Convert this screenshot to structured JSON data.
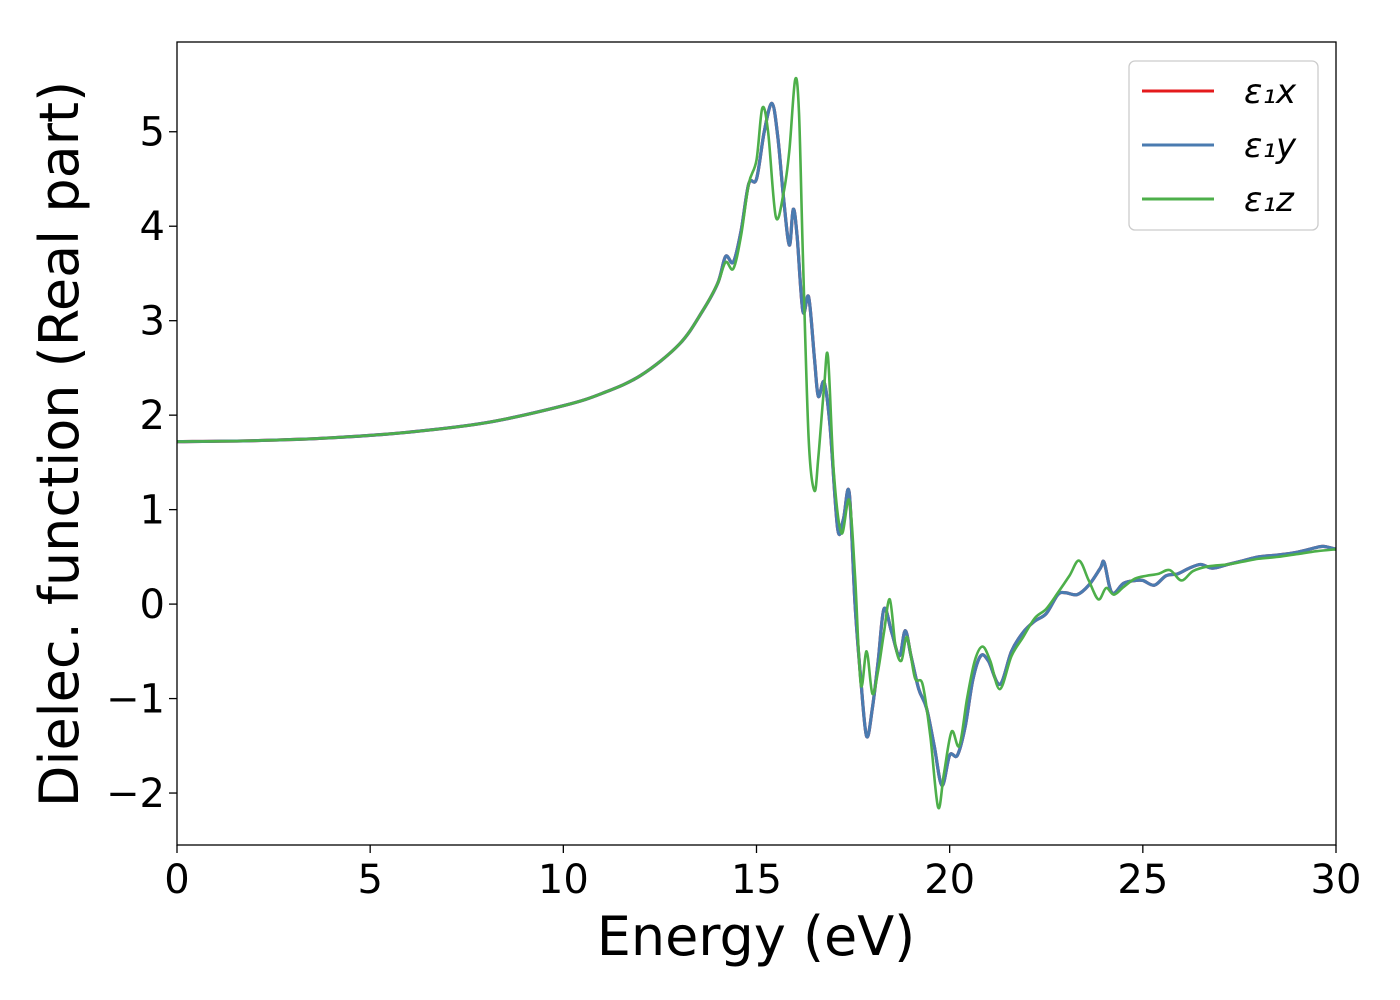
{
  "chart_data": {
    "type": "line",
    "xlabel": "Energy (eV)",
    "ylabel": "Dielec. function (Real part)",
    "xlim": [
      0,
      30
    ],
    "ylim": [
      -2.55,
      5.95
    ],
    "xticks": [
      0,
      5,
      10,
      15,
      20,
      25,
      30
    ],
    "xtick_labels": [
      "0",
      "5",
      "10",
      "15",
      "20",
      "25",
      "30"
    ],
    "yticks": [
      -2,
      -1,
      0,
      1,
      2,
      3,
      4,
      5
    ],
    "ytick_labels": [
      "−2",
      "−1",
      "0",
      "1",
      "2",
      "3",
      "4",
      "5"
    ],
    "grid": false,
    "legend_position": "top-right",
    "series": [
      {
        "name": "ε₁x",
        "legend_label": "ε₁x",
        "color": "#e41a1c",
        "x": [
          0,
          2,
          4,
          6,
          8,
          10,
          11,
          12,
          13,
          13.6,
          14.0,
          14.2,
          14.4,
          14.6,
          14.8,
          15.0,
          15.2,
          15.4,
          15.55,
          15.7,
          15.85,
          15.95,
          16.05,
          16.2,
          16.35,
          16.5,
          16.6,
          16.75,
          16.9,
          17.1,
          17.25,
          17.4,
          17.55,
          17.7,
          17.85,
          18.0,
          18.15,
          18.3,
          18.5,
          18.7,
          18.85,
          19.0,
          19.2,
          19.4,
          19.6,
          19.8,
          20.0,
          20.2,
          20.4,
          20.6,
          20.8,
          21.0,
          21.3,
          21.6,
          21.9,
          22.2,
          22.5,
          22.8,
          23.0,
          23.3,
          23.6,
          23.9,
          24.0,
          24.2,
          24.5,
          24.8,
          25.0,
          25.3,
          25.6,
          25.9,
          26.2,
          26.5,
          26.8,
          27.2,
          27.6,
          28.0,
          28.5,
          29.0,
          29.5,
          29.7,
          30.0
        ],
        "y": [
          1.72,
          1.73,
          1.76,
          1.82,
          1.92,
          2.1,
          2.23,
          2.42,
          2.75,
          3.1,
          3.4,
          3.68,
          3.62,
          3.95,
          4.45,
          4.5,
          5.0,
          5.3,
          4.95,
          4.3,
          3.8,
          4.18,
          3.9,
          3.1,
          3.25,
          2.6,
          2.2,
          2.35,
          1.9,
          0.8,
          0.9,
          1.18,
          0.0,
          -0.8,
          -1.4,
          -1.1,
          -0.6,
          -0.05,
          -0.3,
          -0.55,
          -0.28,
          -0.55,
          -0.9,
          -1.1,
          -1.5,
          -1.92,
          -1.6,
          -1.6,
          -1.3,
          -0.8,
          -0.55,
          -0.6,
          -0.85,
          -0.5,
          -0.3,
          -0.18,
          -0.1,
          0.1,
          0.12,
          0.1,
          0.2,
          0.38,
          0.44,
          0.12,
          0.22,
          0.25,
          0.25,
          0.2,
          0.3,
          0.32,
          0.38,
          0.42,
          0.38,
          0.42,
          0.46,
          0.5,
          0.52,
          0.55,
          0.6,
          0.61,
          0.58
        ]
      },
      {
        "name": "ε₁y",
        "legend_label": "ε₁y",
        "color": "#4a7bb0",
        "x": [
          0,
          2,
          4,
          6,
          8,
          10,
          11,
          12,
          13,
          13.6,
          14.0,
          14.2,
          14.4,
          14.6,
          14.8,
          15.0,
          15.2,
          15.4,
          15.55,
          15.7,
          15.85,
          15.95,
          16.05,
          16.2,
          16.35,
          16.5,
          16.6,
          16.75,
          16.9,
          17.1,
          17.25,
          17.4,
          17.55,
          17.7,
          17.85,
          18.0,
          18.15,
          18.3,
          18.5,
          18.7,
          18.85,
          19.0,
          19.2,
          19.4,
          19.6,
          19.8,
          20.0,
          20.2,
          20.4,
          20.6,
          20.8,
          21.0,
          21.3,
          21.6,
          21.9,
          22.2,
          22.5,
          22.8,
          23.0,
          23.3,
          23.6,
          23.9,
          24.0,
          24.2,
          24.5,
          24.8,
          25.0,
          25.3,
          25.6,
          25.9,
          26.2,
          26.5,
          26.8,
          27.2,
          27.6,
          28.0,
          28.5,
          29.0,
          29.5,
          29.7,
          30.0
        ],
        "y": [
          1.72,
          1.73,
          1.76,
          1.82,
          1.92,
          2.1,
          2.23,
          2.42,
          2.75,
          3.1,
          3.4,
          3.68,
          3.62,
          3.95,
          4.45,
          4.5,
          5.0,
          5.3,
          4.95,
          4.3,
          3.8,
          4.18,
          3.9,
          3.1,
          3.25,
          2.6,
          2.2,
          2.35,
          1.9,
          0.8,
          0.9,
          1.18,
          0.0,
          -0.8,
          -1.4,
          -1.1,
          -0.6,
          -0.05,
          -0.3,
          -0.55,
          -0.28,
          -0.55,
          -0.9,
          -1.1,
          -1.5,
          -1.92,
          -1.6,
          -1.6,
          -1.3,
          -0.8,
          -0.55,
          -0.6,
          -0.85,
          -0.5,
          -0.3,
          -0.18,
          -0.1,
          0.1,
          0.12,
          0.1,
          0.2,
          0.38,
          0.44,
          0.12,
          0.22,
          0.25,
          0.25,
          0.2,
          0.3,
          0.32,
          0.38,
          0.42,
          0.38,
          0.42,
          0.46,
          0.5,
          0.52,
          0.55,
          0.6,
          0.61,
          0.58
        ]
      },
      {
        "name": "ε₁z",
        "legend_label": "ε₁z",
        "color": "#4daf4a",
        "x": [
          0,
          2,
          4,
          6,
          8,
          10,
          11,
          12,
          13,
          13.6,
          14.0,
          14.2,
          14.4,
          14.6,
          14.8,
          15.0,
          15.15,
          15.3,
          15.5,
          15.7,
          15.85,
          16.0,
          16.1,
          16.2,
          16.35,
          16.5,
          16.6,
          16.75,
          16.85,
          17.0,
          17.2,
          17.4,
          17.55,
          17.7,
          17.85,
          18.0,
          18.15,
          18.3,
          18.45,
          18.6,
          18.75,
          18.9,
          19.1,
          19.3,
          19.5,
          19.7,
          19.85,
          20.05,
          20.25,
          20.45,
          20.65,
          20.85,
          21.05,
          21.3,
          21.6,
          21.9,
          22.2,
          22.5,
          22.8,
          23.1,
          23.35,
          23.6,
          23.85,
          24.05,
          24.25,
          24.5,
          24.8,
          25.1,
          25.4,
          25.7,
          26.0,
          26.3,
          26.7,
          27.2,
          27.6,
          28.0,
          28.5,
          29.0,
          29.5,
          30.0
        ],
        "y": [
          1.72,
          1.73,
          1.76,
          1.82,
          1.92,
          2.1,
          2.23,
          2.42,
          2.75,
          3.1,
          3.4,
          3.62,
          3.55,
          3.9,
          4.45,
          4.7,
          5.25,
          5.0,
          4.1,
          4.35,
          4.8,
          5.55,
          5.2,
          3.7,
          1.75,
          1.2,
          1.55,
          2.3,
          2.62,
          1.4,
          0.75,
          1.1,
          0.3,
          -0.85,
          -0.5,
          -0.95,
          -0.7,
          -0.3,
          0.05,
          -0.45,
          -0.6,
          -0.35,
          -0.78,
          -0.85,
          -1.4,
          -2.15,
          -1.8,
          -1.35,
          -1.5,
          -1.0,
          -0.6,
          -0.45,
          -0.6,
          -0.9,
          -0.55,
          -0.35,
          -0.15,
          -0.05,
          0.12,
          0.3,
          0.46,
          0.25,
          0.05,
          0.17,
          0.1,
          0.18,
          0.27,
          0.3,
          0.32,
          0.36,
          0.25,
          0.35,
          0.4,
          0.42,
          0.45,
          0.48,
          0.5,
          0.53,
          0.56,
          0.58
        ]
      }
    ]
  }
}
